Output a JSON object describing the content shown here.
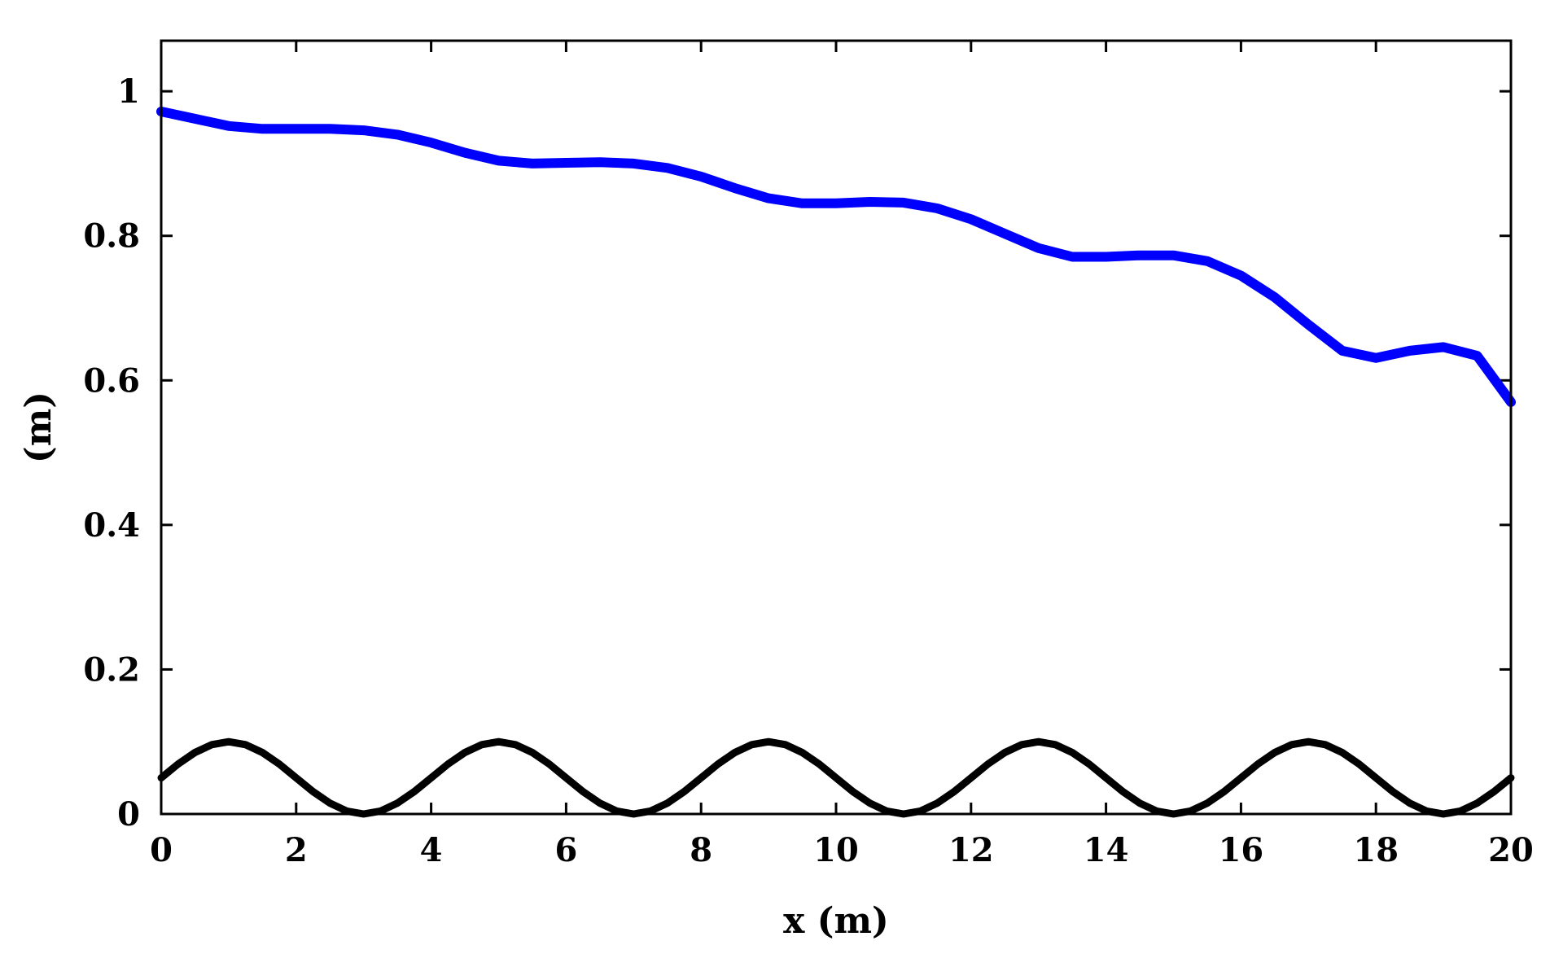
{
  "chart_data": {
    "type": "line",
    "xlabel": "x (m)",
    "ylabel": "(m)",
    "xlim": [
      0,
      20
    ],
    "ylim": [
      0,
      1.07
    ],
    "xticks": [
      "0",
      "2",
      "4",
      "6",
      "8",
      "10",
      "12",
      "14",
      "16",
      "18",
      "20"
    ],
    "yticks": [
      "0",
      "0.2",
      "0.4",
      "0.6",
      "0.8",
      "1"
    ],
    "grid": false,
    "legend": "none",
    "series": [
      {
        "color": "#0000ff",
        "x": [
          0,
          0.5,
          1,
          1.5,
          2,
          2.5,
          3,
          3.5,
          4,
          4.5,
          5,
          5.5,
          6,
          6.5,
          7,
          7.5,
          8,
          8.5,
          9,
          9.5,
          10,
          10.5,
          11,
          11.5,
          12,
          12.5,
          13,
          13.5,
          14,
          14.5,
          15,
          15.5,
          16,
          16.5,
          17,
          17.5,
          18,
          18.5,
          19,
          19.5,
          20
        ],
        "y": [
          0.972,
          0.962,
          0.952,
          0.948,
          0.948,
          0.948,
          0.946,
          0.94,
          0.929,
          0.915,
          0.904,
          0.9,
          0.901,
          0.902,
          0.9,
          0.894,
          0.882,
          0.866,
          0.852,
          0.845,
          0.845,
          0.847,
          0.846,
          0.838,
          0.823,
          0.803,
          0.783,
          0.771,
          0.771,
          0.773,
          0.773,
          0.765,
          0.745,
          0.715,
          0.677,
          0.641,
          0.631,
          0.641,
          0.646,
          0.634,
          0.57
        ]
      },
      {
        "color": "#000000",
        "x": [
          0,
          0.25,
          0.5,
          0.75,
          1,
          1.25,
          1.5,
          1.75,
          2,
          2.25,
          2.5,
          2.75,
          3,
          3.25,
          3.5,
          3.75,
          4,
          4.25,
          4.5,
          4.75,
          5,
          5.25,
          5.5,
          5.75,
          6,
          6.25,
          6.5,
          6.75,
          7,
          7.25,
          7.5,
          7.75,
          8,
          8.25,
          8.5,
          8.75,
          9,
          9.25,
          9.5,
          9.75,
          10,
          10.25,
          10.5,
          10.75,
          11,
          11.25,
          11.5,
          11.75,
          12,
          12.25,
          12.5,
          12.75,
          13,
          13.25,
          13.5,
          13.75,
          14,
          14.25,
          14.5,
          14.75,
          15,
          15.25,
          15.5,
          15.75,
          16,
          16.25,
          16.5,
          16.75,
          17,
          17.25,
          17.5,
          17.75,
          18,
          18.25,
          18.5,
          18.75,
          19,
          19.25,
          19.5,
          19.75,
          20
        ],
        "y": [
          0.05,
          0.069,
          0.085,
          0.096,
          0.1,
          0.096,
          0.085,
          0.069,
          0.05,
          0.031,
          0.015,
          0.004,
          0.0,
          0.004,
          0.015,
          0.031,
          0.05,
          0.069,
          0.085,
          0.096,
          0.1,
          0.096,
          0.085,
          0.069,
          0.05,
          0.031,
          0.015,
          0.004,
          0.0,
          0.004,
          0.015,
          0.031,
          0.05,
          0.069,
          0.085,
          0.096,
          0.1,
          0.096,
          0.085,
          0.069,
          0.05,
          0.031,
          0.015,
          0.004,
          0.0,
          0.004,
          0.015,
          0.031,
          0.05,
          0.069,
          0.085,
          0.096,
          0.1,
          0.096,
          0.085,
          0.069,
          0.05,
          0.031,
          0.015,
          0.004,
          0.0,
          0.004,
          0.015,
          0.031,
          0.05,
          0.069,
          0.085,
          0.096,
          0.1,
          0.096,
          0.085,
          0.069,
          0.05,
          0.031,
          0.015,
          0.004,
          0.0,
          0.004,
          0.015,
          0.031,
          0.05
        ]
      }
    ]
  }
}
